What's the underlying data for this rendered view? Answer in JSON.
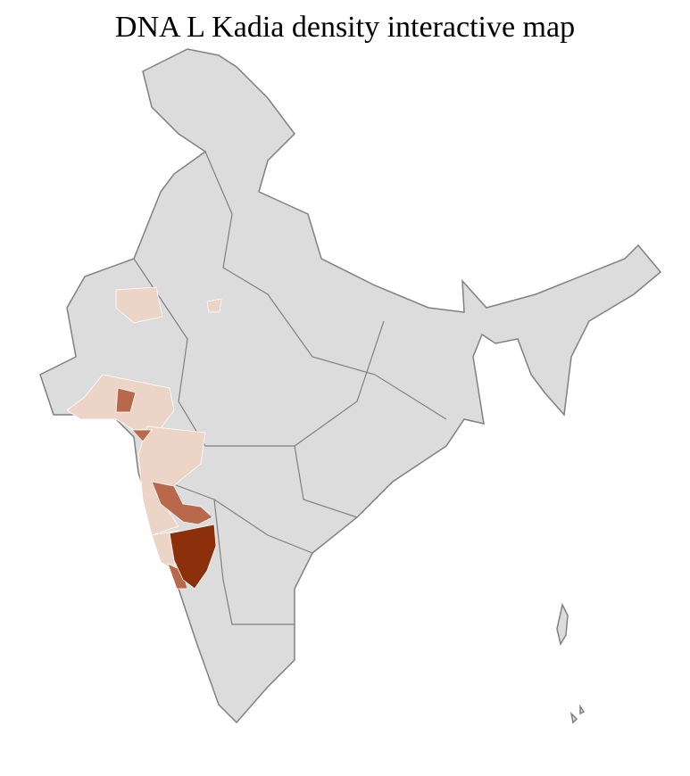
{
  "title": "DNA L Kadia density interactive map",
  "colors": {
    "no_data": "#dcdcdc",
    "low": "#ecd4c7",
    "medium": "#b9694b",
    "high": "#8c2f0b",
    "state_border": "#808080",
    "district_border": "#ffffff"
  }
}
